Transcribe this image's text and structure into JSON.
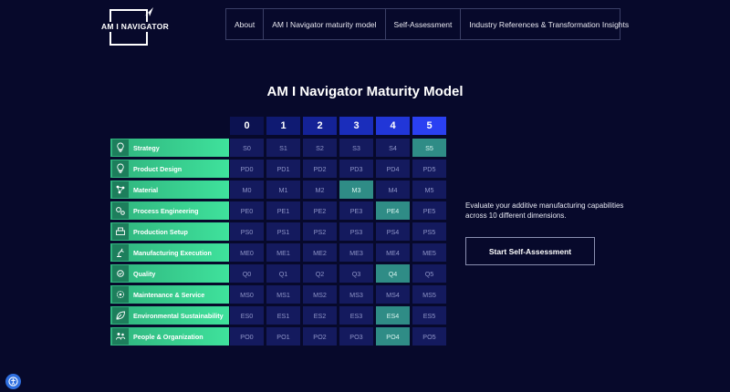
{
  "logo": {
    "text": "AM I NAVIGATOR"
  },
  "nav": [
    "About",
    "AM I Navigator maturity model",
    "Self-Assessment",
    "Industry References & Transformation Insights"
  ],
  "page_title": "AM I Navigator Maturity Model",
  "levels": [
    "0",
    "1",
    "2",
    "3",
    "4",
    "5"
  ],
  "level_colors": [
    "#0c1251",
    "#0f1a72",
    "#142296",
    "#1a2dbb",
    "#2136d8",
    "#2a40f2"
  ],
  "dimensions": [
    {
      "label": "Strategy",
      "icon": "lightbulb-icon",
      "cells": [
        "S0",
        "S1",
        "S2",
        "S3",
        "S4",
        "S5"
      ],
      "active": 5
    },
    {
      "label": "Product Design",
      "icon": "lightbulb-icon",
      "cells": [
        "PD0",
        "PD1",
        "PD2",
        "PD3",
        "PD4",
        "PD5"
      ],
      "active": -1
    },
    {
      "label": "Material",
      "icon": "molecule-icon",
      "cells": [
        "M0",
        "M1",
        "M2",
        "M3",
        "M4",
        "M5"
      ],
      "active": 3
    },
    {
      "label": "Process Engineering",
      "icon": "gears-icon",
      "cells": [
        "PE0",
        "PE1",
        "PE2",
        "PE3",
        "PE4",
        "PE5"
      ],
      "active": 4
    },
    {
      "label": "Production Setup",
      "icon": "printer-icon",
      "cells": [
        "PS0",
        "PS1",
        "PS2",
        "PS3",
        "PS4",
        "PS5"
      ],
      "active": -1
    },
    {
      "label": "Manufacturing Execution",
      "icon": "robot-arm-icon",
      "cells": [
        "ME0",
        "ME1",
        "ME2",
        "ME3",
        "ME4",
        "ME5"
      ],
      "active": -1
    },
    {
      "label": "Quality",
      "icon": "quality-gear-icon",
      "cells": [
        "Q0",
        "Q1",
        "Q2",
        "Q3",
        "Q4",
        "Q5"
      ],
      "active": 4
    },
    {
      "label": "Maintenance & Service",
      "icon": "wrench-cog-icon",
      "cells": [
        "MS0",
        "MS1",
        "MS2",
        "MS3",
        "MS4",
        "MS5"
      ],
      "active": -1
    },
    {
      "label": "Environmental Sustainability",
      "icon": "leaf-recycle-icon",
      "cells": [
        "ES0",
        "ES1",
        "ES2",
        "ES3",
        "ES4",
        "ES5"
      ],
      "active": 4
    },
    {
      "label": "People & Organization",
      "icon": "people-icon",
      "cells": [
        "PO0",
        "PO1",
        "PO2",
        "PO3",
        "PO4",
        "PO5"
      ],
      "active": 4
    }
  ],
  "description": "Evaluate your additive manufacturing capabilities across 10 different dimensions.",
  "cta_label": "Start Self-Assessment"
}
